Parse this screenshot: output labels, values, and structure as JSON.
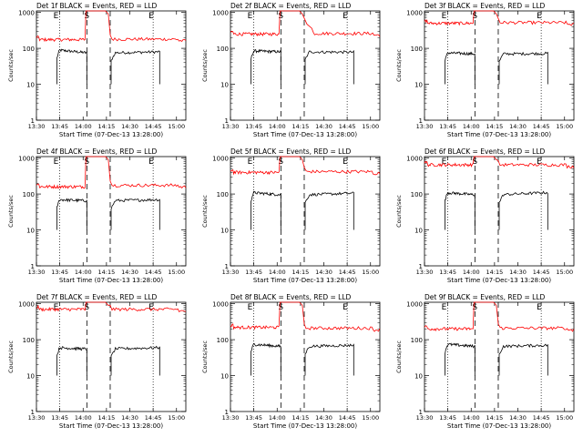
{
  "figure": {
    "ylabel": "Counts/sec",
    "xlabel": "Start Time (07-Dec-13 13:28:00)",
    "title_suffix": "BLACK = Events, RED = LLD",
    "marker_E": "E",
    "marker_S": "S",
    "series_color_events": "#000000",
    "series_color_lld": "#ff0000"
  },
  "chart_data": [
    {
      "type": "line",
      "detector": "Det 1f",
      "title": "Det 1f BLACK = Events, RED = LLD",
      "x_ticks": [
        "13:30",
        "13:45",
        "14:00",
        "14:15",
        "14:30",
        "14:45",
        "15:00"
      ],
      "y_ticks": [
        "1",
        "10",
        "100",
        "1000"
      ],
      "xlim": [
        13.5,
        15.1
      ],
      "ylim": [
        1,
        1100
      ],
      "yscale": "log",
      "vlines_dotted": [
        13.75,
        14.75
      ],
      "vlines_dashed": [
        14.04,
        14.29
      ],
      "events": {
        "segments": [
          [
            13.72,
            14.04,
            90,
            75
          ],
          [
            14.3,
            14.82,
            75,
            80
          ]
        ]
      },
      "lld": {
        "left_level": 175,
        "right_level": 180,
        "peak": 1000,
        "right_settle": false
      }
    },
    {
      "type": "line",
      "detector": "Det 2f",
      "title": "Det 2f BLACK = Events, RED = LLD",
      "x_ticks": [
        "13:30",
        "13:45",
        "14:00",
        "14:15",
        "14:30",
        "14:45",
        "15:00"
      ],
      "y_ticks": [
        "1",
        "10",
        "100",
        "1000"
      ],
      "xlim": [
        13.5,
        15.1
      ],
      "ylim": [
        1,
        1100
      ],
      "yscale": "log",
      "vlines_dotted": [
        13.75,
        14.75
      ],
      "vlines_dashed": [
        14.04,
        14.29
      ],
      "events": {
        "segments": [
          [
            13.72,
            14.04,
            85,
            80
          ],
          [
            14.3,
            14.82,
            80,
            78
          ]
        ]
      },
      "lld": {
        "left_level": 250,
        "right_level": 260,
        "peak": 1000,
        "right_settle": true
      }
    },
    {
      "type": "line",
      "detector": "Det 3f",
      "title": "Det 3f BLACK = Events, RED = LLD",
      "x_ticks": [
        "13:30",
        "13:45",
        "14:00",
        "14:15",
        "14:30",
        "14:45",
        "15:00"
      ],
      "y_ticks": [
        "1",
        "10",
        "100",
        "1000"
      ],
      "xlim": [
        13.5,
        15.1
      ],
      "ylim": [
        1,
        1100
      ],
      "yscale": "log",
      "vlines_dotted": [
        13.75,
        14.75
      ],
      "vlines_dashed": [
        14.04,
        14.29
      ],
      "events": {
        "segments": [
          [
            13.72,
            14.04,
            75,
            70
          ],
          [
            14.3,
            14.82,
            70,
            72
          ]
        ]
      },
      "lld": {
        "left_level": 500,
        "right_level": 520,
        "peak": 1000,
        "right_settle": false
      }
    },
    {
      "type": "line",
      "detector": "Det 4f",
      "title": "Det 4f BLACK = Events, RED = LLD",
      "x_ticks": [
        "13:30",
        "13:45",
        "14:00",
        "14:15",
        "14:30",
        "14:45",
        "15:00"
      ],
      "y_ticks": [
        "1",
        "10",
        "100",
        "1000"
      ],
      "xlim": [
        13.5,
        15.1
      ],
      "ylim": [
        1,
        1100
      ],
      "yscale": "log",
      "vlines_dotted": [
        13.75,
        14.75
      ],
      "vlines_dashed": [
        14.04,
        14.29
      ],
      "events": {
        "segments": [
          [
            13.72,
            14.04,
            70,
            65
          ],
          [
            14.3,
            14.82,
            65,
            70
          ]
        ]
      },
      "lld": {
        "left_level": 160,
        "right_level": 175,
        "peak": 1000,
        "right_settle": false
      }
    },
    {
      "type": "line",
      "detector": "Det 5f",
      "title": "Det 5f BLACK = Events, RED = LLD",
      "x_ticks": [
        "13:30",
        "13:45",
        "14:00",
        "14:15",
        "14:30",
        "14:45",
        "15:00"
      ],
      "y_ticks": [
        "1",
        "10",
        "100",
        "1000"
      ],
      "xlim": [
        13.5,
        15.1
      ],
      "ylim": [
        1,
        1100
      ],
      "yscale": "log",
      "vlines_dotted": [
        13.75,
        14.75
      ],
      "vlines_dashed": [
        14.04,
        14.29
      ],
      "events": {
        "segments": [
          [
            13.72,
            14.04,
            110,
            95
          ],
          [
            14.3,
            14.82,
            95,
            105
          ]
        ]
      },
      "lld": {
        "left_level": 400,
        "right_level": 420,
        "peak": 1000,
        "right_settle": false
      }
    },
    {
      "type": "line",
      "detector": "Det 6f",
      "title": "Det 6f BLACK = Events, RED = LLD",
      "x_ticks": [
        "13:30",
        "13:45",
        "14:00",
        "14:15",
        "14:30",
        "14:45",
        "15:00"
      ],
      "y_ticks": [
        "1",
        "10",
        "100",
        "1000"
      ],
      "xlim": [
        13.5,
        15.1
      ],
      "ylim": [
        1,
        1100
      ],
      "yscale": "log",
      "vlines_dotted": [
        13.75,
        14.75
      ],
      "vlines_dashed": [
        14.04,
        14.29
      ],
      "events": {
        "segments": [
          [
            13.72,
            14.04,
            110,
            95
          ],
          [
            14.3,
            14.82,
            95,
            110
          ]
        ]
      },
      "lld": {
        "left_level": 650,
        "right_level": 650,
        "peak": 1000,
        "right_settle": false
      }
    },
    {
      "type": "line",
      "detector": "Det 7f",
      "title": "Det 7f BLACK = Events, RED = LLD",
      "x_ticks": [
        "13:30",
        "13:45",
        "14:00",
        "14:15",
        "14:30",
        "14:45",
        "15:00"
      ],
      "y_ticks": [
        "1",
        "10",
        "100",
        "1000"
      ],
      "xlim": [
        13.5,
        15.1
      ],
      "ylim": [
        1,
        1100
      ],
      "yscale": "log",
      "vlines_dotted": [
        13.75,
        14.75
      ],
      "vlines_dashed": [
        14.04,
        14.29
      ],
      "events": {
        "segments": [
          [
            13.72,
            14.04,
            60,
            55
          ],
          [
            14.3,
            14.82,
            55,
            60
          ]
        ]
      },
      "lld": {
        "left_level": 700,
        "right_level": 700,
        "peak": 1000,
        "right_settle": false
      }
    },
    {
      "type": "line",
      "detector": "Det 8f",
      "title": "Det 8f BLACK = Events, RED = LLD",
      "x_ticks": [
        "13:30",
        "13:45",
        "14:00",
        "14:15",
        "14:30",
        "14:45",
        "15:00"
      ],
      "y_ticks": [
        "1",
        "10",
        "100",
        "1000"
      ],
      "xlim": [
        13.5,
        15.1
      ],
      "ylim": [
        1,
        1100
      ],
      "yscale": "log",
      "vlines_dotted": [
        13.75,
        14.75
      ],
      "vlines_dashed": [
        14.04,
        14.29
      ],
      "events": {
        "segments": [
          [
            13.72,
            14.04,
            75,
            65
          ],
          [
            14.3,
            14.82,
            65,
            70
          ]
        ]
      },
      "lld": {
        "left_level": 220,
        "right_level": 210,
        "peak": 1000,
        "right_settle": false
      }
    },
    {
      "type": "line",
      "detector": "Det 9f",
      "title": "Det 9f BLACK = Events, RED = LLD",
      "x_ticks": [
        "13:30",
        "13:45",
        "14:00",
        "14:15",
        "14:30",
        "14:45",
        "15:00"
      ],
      "y_ticks": [
        "1",
        "10",
        "100",
        "1000"
      ],
      "xlim": [
        13.5,
        15.1
      ],
      "ylim": [
        1,
        1100
      ],
      "yscale": "log",
      "vlines_dotted": [
        13.75,
        14.75
      ],
      "vlines_dashed": [
        14.04,
        14.29
      ],
      "events": {
        "segments": [
          [
            13.72,
            14.04,
            75,
            65
          ],
          [
            14.3,
            14.82,
            65,
            70
          ]
        ]
      },
      "lld": {
        "left_level": 200,
        "right_level": 210,
        "peak": 1000,
        "right_settle": false
      }
    }
  ]
}
